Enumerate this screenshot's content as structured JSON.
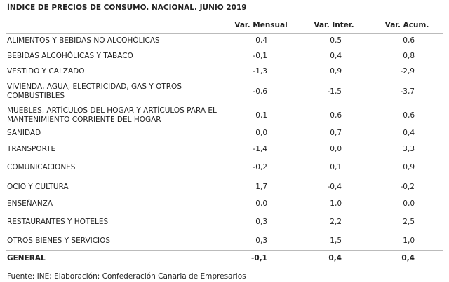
{
  "title": "ÍNDICE DE PRECIOS DE CONSUMO. NACIONAL. JUNIO 2019",
  "table": {
    "columns": [
      "Var. Mensual",
      "Var. Inter.",
      "Var. Acum."
    ],
    "rows": [
      [
        "ALIMENTOS Y BEBIDAS NO ALCOHÓLICAS",
        "0,4",
        "0,5",
        "0,6"
      ],
      [
        "BEBIDAS ALCOHÓLICAS Y TABACO",
        "-0,1",
        "0,4",
        "0,8"
      ],
      [
        "VESTIDO Y CALZADO",
        "-1,3",
        "0,9",
        "-2,9"
      ],
      [
        "VIVIENDA, AGUA, ELECTRICIDAD, GAS Y OTROS COMBUSTIBLES",
        "-0,6",
        "-1,5",
        "-3,7"
      ],
      [
        "MUEBLES, ARTÍCULOS DEL HOGAR Y ARTÍCULOS PARA EL MANTENIMIENTO CORRIENTE DEL HOGAR",
        "0,1",
        "0,6",
        "0,6"
      ],
      [
        "SANIDAD",
        "0,0",
        "0,7",
        "0,4"
      ],
      [
        "TRANSPORTE",
        "-1,4",
        "0,0",
        "3,3"
      ],
      [
        "COMUNICACIONES",
        "-0,2",
        "0,1",
        "0,9"
      ],
      [
        "OCIO Y CULTURA",
        "1,7",
        "-0,4",
        "-0,2"
      ],
      [
        "ENSEÑANZA",
        "0,0",
        "1,0",
        "0,0"
      ],
      [
        "RESTAURANTES Y HOTELES",
        "0,3",
        "2,2",
        "2,5"
      ],
      [
        "OTROS BIENES Y SERVICIOS",
        "0,3",
        "1,5",
        "1,0"
      ]
    ],
    "total": [
      "GENERAL",
      "-0,1",
      "0,4",
      "0,4"
    ]
  },
  "source": "Fuente: INE; Elaboración: Confederación Canaria de Empresarios"
}
